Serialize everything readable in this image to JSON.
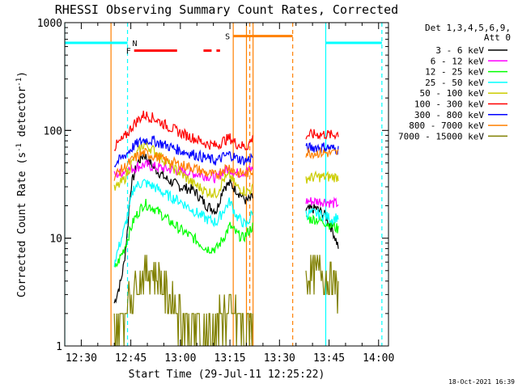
{
  "chart_data": {
    "type": "line",
    "title": "RHESSI Observing Summary Count Rates, Corrected",
    "xlabel": "Start Time (29-Jul-11 12:25:22)",
    "ylabel_main": "Corrected Count Rate (s",
    "ylabel_sup1": "-1",
    "ylabel_mid": " detector",
    "ylabel_sup2": "-1",
    "ylabel_end": ")",
    "y_scale": "log",
    "ylim": [
      1,
      1000
    ],
    "y_ticks": [
      {
        "value": 1,
        "label": "1"
      },
      {
        "value": 10,
        "label": "10"
      },
      {
        "value": 100,
        "label": "100"
      },
      {
        "value": 1000,
        "label": "1000"
      }
    ],
    "x_range": [
      "12:25",
      "14:03"
    ],
    "x_ticks": [
      {
        "time": "12:30",
        "label": "12:30"
      },
      {
        "time": "12:45",
        "label": "12:45"
      },
      {
        "time": "13:00",
        "label": "13:00"
      },
      {
        "time": "13:15",
        "label": "13:15"
      },
      {
        "time": "13:30",
        "label": "13:30"
      },
      {
        "time": "13:45",
        "label": "13:45"
      },
      {
        "time": "14:00",
        "label": "14:00"
      }
    ],
    "legend_header": [
      "Det 1,3,4,5,6,9,",
      "Att 0"
    ],
    "legend_position": "right",
    "grid": false,
    "timestamp": "18-Oct-2021 16:39",
    "series": [
      {
        "name": "3 - 6 keV",
        "color": "#000000",
        "segments": [
          [
            [
              "12:40",
              2.5
            ],
            [
              "12:42",
              4
            ],
            [
              "12:43",
              6
            ],
            [
              "12:44",
              12
            ],
            [
              "12:45",
              30
            ],
            [
              "12:47",
              50
            ],
            [
              "12:49",
              60
            ],
            [
              "12:52",
              45
            ],
            [
              "12:56",
              35
            ],
            [
              "13:00",
              30
            ],
            [
              "13:04",
              28
            ],
            [
              "13:08",
              20
            ],
            [
              "13:11",
              18
            ],
            [
              "13:13",
              30
            ],
            [
              "13:15",
              32
            ],
            [
              "13:17",
              28
            ],
            [
              "13:20",
              22
            ],
            [
              "13:22",
              24
            ]
          ],
          [
            [
              "13:38",
              18
            ],
            [
              "13:41",
              19
            ],
            [
              "13:44",
              16
            ],
            [
              "13:46",
              12
            ],
            [
              "13:48",
              8
            ]
          ]
        ]
      },
      {
        "name": "6 - 12 keV",
        "color": "#ff00ff",
        "segments": [
          [
            [
              "12:40",
              38
            ],
            [
              "12:43",
              42
            ],
            [
              "12:46",
              45
            ],
            [
              "12:49",
              48
            ],
            [
              "12:52",
              46
            ],
            [
              "12:56",
              44
            ],
            [
              "13:00",
              42
            ],
            [
              "13:04",
              40
            ],
            [
              "13:08",
              38
            ],
            [
              "13:11",
              36
            ],
            [
              "13:13",
              42
            ],
            [
              "13:15",
              44
            ],
            [
              "13:17",
              40
            ],
            [
              "13:20",
              42
            ],
            [
              "13:22",
              44
            ]
          ],
          [
            [
              "13:38",
              22
            ],
            [
              "13:41",
              22
            ],
            [
              "13:44",
              22
            ],
            [
              "13:46",
              21
            ],
            [
              "13:48",
              21
            ]
          ]
        ]
      },
      {
        "name": "12 - 25 keV",
        "color": "#00ff00",
        "segments": [
          [
            [
              "12:40",
              5
            ],
            [
              "12:43",
              8
            ],
            [
              "12:46",
              15
            ],
            [
              "12:49",
              21
            ],
            [
              "12:52",
              19
            ],
            [
              "12:56",
              15
            ],
            [
              "13:00",
              12
            ],
            [
              "13:04",
              10
            ],
            [
              "13:08",
              8
            ],
            [
              "13:11",
              8
            ],
            [
              "13:13",
              10
            ],
            [
              "13:15",
              13
            ],
            [
              "13:17",
              11
            ],
            [
              "13:19",
              10
            ],
            [
              "13:22",
              13
            ]
          ],
          [
            [
              "13:38",
              15
            ],
            [
              "13:41",
              15
            ],
            [
              "13:44",
              14
            ],
            [
              "13:46",
              13
            ],
            [
              "13:48",
              12
            ]
          ]
        ]
      },
      {
        "name": "25 - 50 keV",
        "color": "#00ffff",
        "segments": [
          [
            [
              "12:40",
              6
            ],
            [
              "12:43",
              12
            ],
            [
              "12:46",
              30
            ],
            [
              "12:49",
              33
            ],
            [
              "12:52",
              30
            ],
            [
              "12:56",
              25
            ],
            [
              "13:00",
              22
            ],
            [
              "13:04",
              18
            ],
            [
              "13:08",
              15
            ],
            [
              "13:11",
              14
            ],
            [
              "13:13",
              18
            ],
            [
              "13:15",
              22
            ],
            [
              "13:17",
              16
            ],
            [
              "13:20",
              13
            ],
            [
              "13:22",
              18
            ]
          ],
          [
            [
              "13:38",
              17
            ],
            [
              "13:41",
              17
            ],
            [
              "13:44",
              16
            ],
            [
              "13:46",
              15
            ],
            [
              "13:48",
              16
            ]
          ]
        ]
      },
      {
        "name": "50 - 100 keV",
        "color": "#cccc00",
        "segments": [
          [
            [
              "12:40",
              28
            ],
            [
              "12:43",
              35
            ],
            [
              "12:46",
              55
            ],
            [
              "12:49",
              75
            ],
            [
              "12:52",
              65
            ],
            [
              "12:56",
              50
            ],
            [
              "13:00",
              40
            ],
            [
              "13:04",
              32
            ],
            [
              "13:08",
              27
            ],
            [
              "13:11",
              26
            ],
            [
              "13:13",
              35
            ],
            [
              "13:15",
              38
            ],
            [
              "13:17",
              30
            ],
            [
              "13:20",
              27
            ],
            [
              "13:22",
              29
            ]
          ],
          [
            [
              "13:38",
              36
            ],
            [
              "13:41",
              37
            ],
            [
              "13:44",
              37
            ],
            [
              "13:46",
              37
            ],
            [
              "13:48",
              37
            ]
          ]
        ]
      },
      {
        "name": "100 - 300 keV",
        "color": "#ff0000",
        "segments": [
          [
            [
              "12:40",
              70
            ],
            [
              "12:43",
              85
            ],
            [
              "12:46",
              115
            ],
            [
              "12:49",
              140
            ],
            [
              "12:52",
              130
            ],
            [
              "12:56",
              110
            ],
            [
              "13:00",
              95
            ],
            [
              "13:04",
              85
            ],
            [
              "13:08",
              75
            ],
            [
              "13:11",
              72
            ],
            [
              "13:13",
              80
            ],
            [
              "13:15",
              85
            ],
            [
              "13:17",
              75
            ],
            [
              "13:20",
              70
            ],
            [
              "13:22",
              85
            ]
          ],
          [
            [
              "13:38",
              90
            ],
            [
              "13:41",
              92
            ],
            [
              "13:44",
              92
            ],
            [
              "13:46",
              90
            ],
            [
              "13:48",
              95
            ]
          ]
        ]
      },
      {
        "name": "300 - 800 keV",
        "color": "#0000ff",
        "segments": [
          [
            [
              "12:40",
              48
            ],
            [
              "12:43",
              58
            ],
            [
              "12:46",
              72
            ],
            [
              "12:49",
              82
            ],
            [
              "12:52",
              80
            ],
            [
              "12:56",
              72
            ],
            [
              "13:00",
              65
            ],
            [
              "13:04",
              60
            ],
            [
              "13:08",
              55
            ],
            [
              "13:11",
              52
            ],
            [
              "13:13",
              57
            ],
            [
              "13:15",
              60
            ],
            [
              "13:17",
              55
            ],
            [
              "13:20",
              52
            ],
            [
              "13:22",
              58
            ]
          ],
          [
            [
              "13:38",
              68
            ],
            [
              "13:41",
              70
            ],
            [
              "13:44",
              70
            ],
            [
              "13:46",
              68
            ],
            [
              "13:48",
              66
            ]
          ]
        ]
      },
      {
        "name": "800 - 7000 keV",
        "color": "#ff8000",
        "segments": [
          [
            [
              "12:40",
              38
            ],
            [
              "12:43",
              45
            ],
            [
              "12:46",
              55
            ],
            [
              "12:49",
              62
            ],
            [
              "12:52",
              58
            ],
            [
              "12:56",
              52
            ],
            [
              "13:00",
              48
            ],
            [
              "13:04",
              45
            ],
            [
              "13:08",
              40
            ],
            [
              "13:11",
              38
            ],
            [
              "13:13",
              44
            ],
            [
              "13:15",
              46
            ],
            [
              "13:17",
              40
            ],
            [
              "13:20",
              40
            ],
            [
              "13:22",
              42
            ]
          ],
          [
            [
              "13:38",
              62
            ],
            [
              "13:41",
              62
            ],
            [
              "13:44",
              62
            ],
            [
              "13:46",
              61
            ],
            [
              "13:48",
              62
            ]
          ]
        ]
      },
      {
        "name": "7000 - 15000 keV",
        "color": "#808000",
        "segments": [
          [
            [
              "12:40",
              1.5
            ],
            [
              "12:43",
              2
            ],
            [
              "12:45",
              3
            ],
            [
              "12:47",
              4
            ],
            [
              "12:50",
              5
            ],
            [
              "12:53",
              4.5
            ],
            [
              "12:56",
              3
            ],
            [
              "13:00",
              2
            ],
            [
              "13:04",
              1.5
            ],
            [
              "13:08",
              1.3
            ],
            [
              "13:11",
              1.5
            ],
            [
              "13:13",
              2
            ],
            [
              "13:15",
              2
            ],
            [
              "13:17",
              1.8
            ],
            [
              "13:19",
              1.5
            ],
            [
              "13:22",
              2
            ]
          ],
          [
            [
              "13:38",
              4
            ],
            [
              "13:41",
              5
            ],
            [
              "13:44",
              4.5
            ],
            [
              "13:46",
              4
            ],
            [
              "13:48",
              3
            ]
          ]
        ]
      }
    ],
    "flags": [
      {
        "label": "N",
        "color": "#00ffff",
        "level": 650,
        "start": "12:25",
        "end": "12:44"
      },
      {
        "label": "",
        "color": "#00ffff",
        "level": 650,
        "start": "13:44",
        "end": "14:01"
      },
      {
        "label": "F",
        "color": "#ff0000",
        "level": 550,
        "start": "12:46",
        "end": "12:59"
      },
      {
        "label": "",
        "color": "#ff0000",
        "level": 550,
        "start": "13:07",
        "end": "13:12",
        "dashed": true
      },
      {
        "label": "S",
        "color": "#ff8000",
        "level": 750,
        "start": "13:16",
        "end": "13:34"
      }
    ],
    "markers": [
      {
        "time": "12:25",
        "color": "#00ffff",
        "style": "solid"
      },
      {
        "time": "12:39",
        "color": "#ff8000",
        "style": "solid"
      },
      {
        "time": "12:44",
        "color": "#00ffff",
        "style": "dashed"
      },
      {
        "time": "13:16",
        "color": "#ff8000",
        "style": "solid"
      },
      {
        "time": "13:20",
        "color": "#ff8000",
        "style": "solid"
      },
      {
        "time": "13:21",
        "color": "#ff8000",
        "style": "dashed"
      },
      {
        "time": "13:22",
        "color": "#ff8000",
        "style": "solid"
      },
      {
        "time": "13:34",
        "color": "#ff8000",
        "style": "dashed"
      },
      {
        "time": "13:44",
        "color": "#00ffff",
        "style": "solid"
      },
      {
        "time": "14:01",
        "color": "#00ffff",
        "style": "dashed"
      }
    ]
  }
}
